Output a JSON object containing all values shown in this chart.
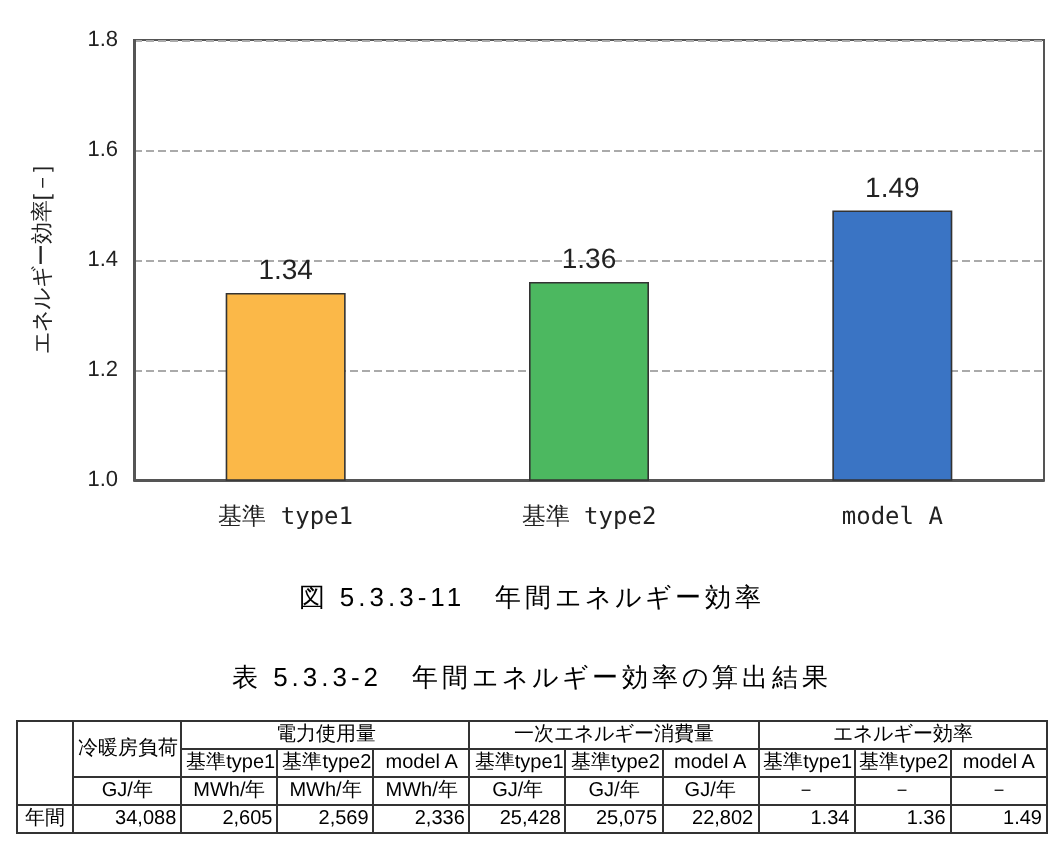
{
  "chart_data": [
    {
      "type": "bar",
      "ylabel": "エネルギー効率[－]",
      "categories": [
        "基準 type1",
        "基準 type2",
        "model A"
      ],
      "values": [
        1.34,
        1.36,
        1.49
      ],
      "colors": [
        "#fbb848",
        "#4cb860",
        "#3a74c4"
      ],
      "ylim": [
        1,
        1.8
      ],
      "yticks": [
        {
          "value": 1,
          "label": "1.0"
        },
        {
          "value": 1.2,
          "label": "1.2"
        },
        {
          "value": 1.4,
          "label": "1.4"
        },
        {
          "value": 1.6,
          "label": "1.6"
        },
        {
          "value": 1.8,
          "label": "1.8"
        }
      ],
      "grid": "y",
      "data_labels": true,
      "annotations": [
        "図 5.3.3-11　年間エネルギー効率"
      ]
    },
    {
      "type": "other",
      "title": "表 5.3.3-2　年間エネルギー効率の算出結果",
      "annotations": [
        "冷暖房負荷",
        "電力使用量",
        "一次エネルギー消費量",
        "エネルギー効率",
        "基準type1",
        "基準type2",
        "model A",
        "基準type1",
        "基準type2",
        "model A",
        "基準type1",
        "基準type2",
        "model A",
        "GJ/年",
        "MWh/年",
        "MWh/年",
        "MWh/年",
        "GJ/年",
        "GJ/年",
        "GJ/年",
        "－",
        "－",
        "－",
        "年間",
        "34,088",
        "2,605",
        "2,569",
        "2,336",
        "25,428",
        "25,075",
        "22,802",
        "1.34",
        "1.36",
        "1.49"
      ]
    }
  ]
}
